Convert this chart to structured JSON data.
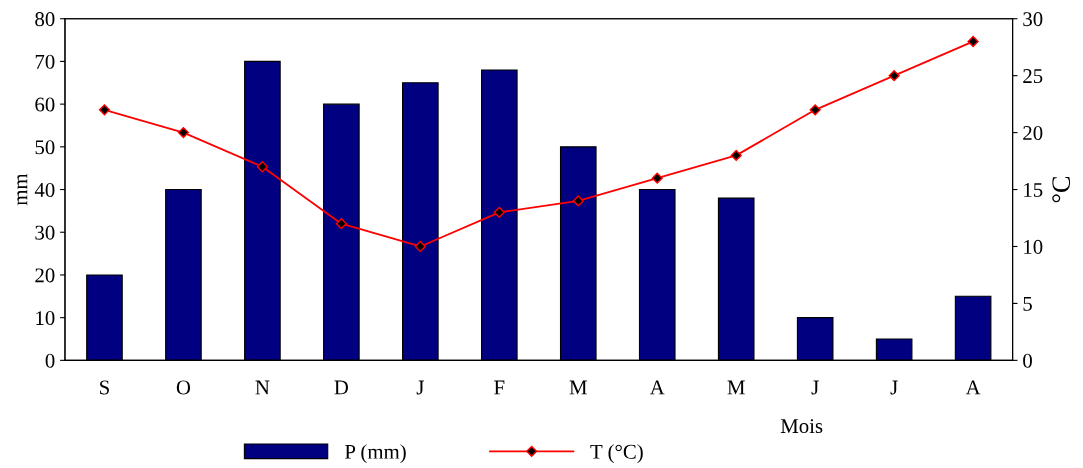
{
  "chart_data": {
    "type": "bar",
    "xlabel": "Mois",
    "ylabel": "mm",
    "y2label": "°C",
    "categories": [
      "S",
      "O",
      "N",
      "D",
      "J",
      "F",
      "M",
      "A",
      "M",
      "J",
      "J",
      "A"
    ],
    "series": [
      {
        "name": "P (mm)",
        "color": "#000080",
        "values": [
          20,
          40,
          70,
          60,
          65,
          68,
          50,
          40,
          38,
          10,
          5,
          15
        ]
      },
      {
        "name": "T (°C)",
        "type": "line",
        "axis": "y2",
        "color": "#ff0000",
        "marker": "diamond",
        "values": [
          22,
          20,
          17,
          12,
          10,
          13,
          14,
          16,
          18,
          22,
          25,
          28
        ]
      }
    ],
    "ylim": [
      0,
      80
    ],
    "yticks": [
      0,
      10,
      20,
      30,
      40,
      50,
      60,
      70,
      80
    ],
    "y2lim": [
      0,
      30
    ],
    "y2ticks": [
      0,
      5,
      10,
      15,
      20,
      25,
      30
    ],
    "grid": false,
    "legend": "bottom"
  }
}
